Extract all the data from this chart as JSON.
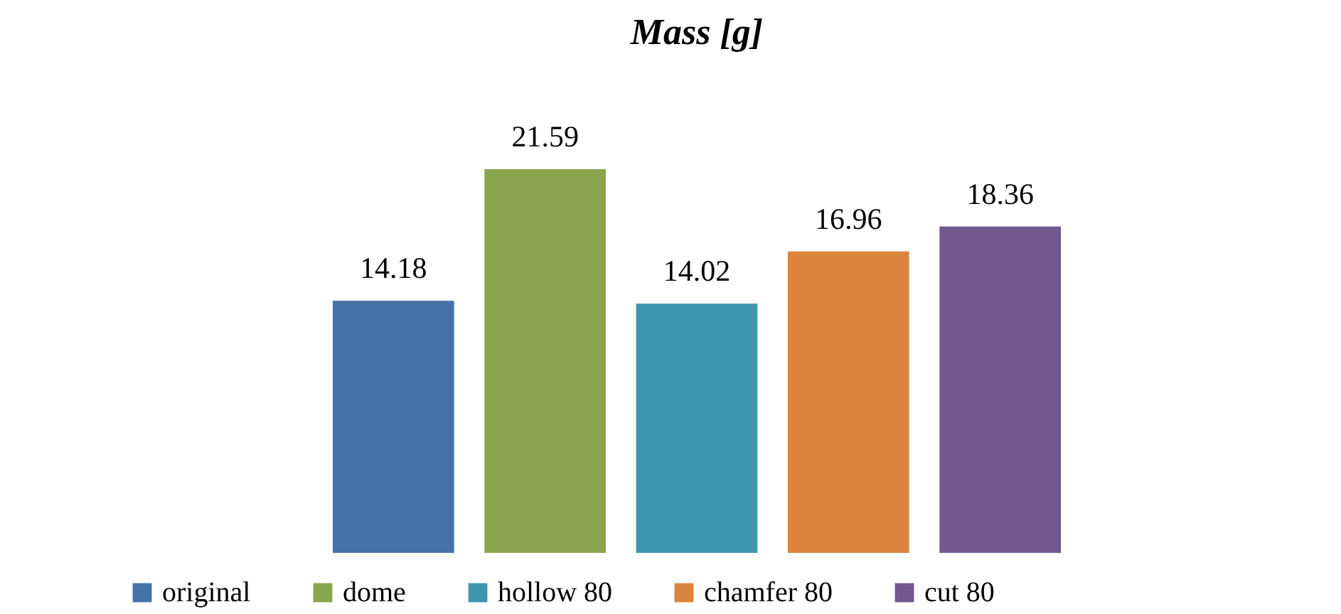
{
  "chart_data": {
    "type": "bar",
    "title": "Mass [g]",
    "categories": [
      null
    ],
    "data_labels": true,
    "legend": "bottom",
    "series": [
      {
        "name": "original",
        "color": "#4572a7",
        "values": [
          14.18
        ]
      },
      {
        "name": "dome",
        "color": "#89a54e",
        "values": [
          21.59
        ]
      },
      {
        "name": "hollow 80",
        "color": "#3d96ae",
        "values": [
          14.02
        ]
      },
      {
        "name": "chamfer 80",
        "color": "#db843d",
        "values": [
          16.96
        ]
      },
      {
        "name": "cut 80",
        "color": "#71588f",
        "values": [
          18.36
        ]
      }
    ]
  }
}
